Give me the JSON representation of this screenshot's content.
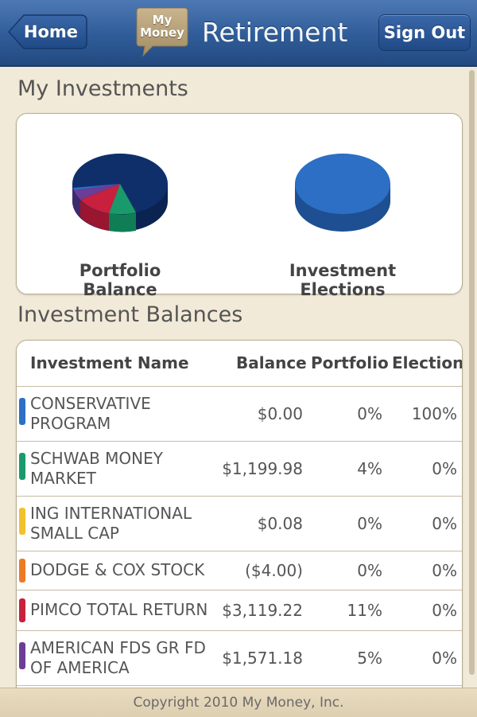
{
  "header": {
    "home_label": "Home",
    "logo_line1": "My",
    "logo_line2": "Money",
    "title": "Retirement",
    "signout_label": "Sign Out"
  },
  "investments": {
    "section_title": "My Investments",
    "charts": [
      {
        "label": "Portfolio Balance"
      },
      {
        "label": "Investment Elections"
      }
    ]
  },
  "balances": {
    "section_title": "Investment Balances",
    "columns": [
      "Investment Name",
      "Balance",
      "Portfolio",
      "Election"
    ],
    "rows": [
      {
        "name_line1": "CONSERVATIVE",
        "name_line2": "PROGRAM",
        "balance": "$0.00",
        "portfolio": "0%",
        "election": "100%",
        "color": "#2c6fc4"
      },
      {
        "name_line1": "SCHWAB MONEY",
        "name_line2": "MARKET",
        "balance": "$1,199.98",
        "portfolio": "4%",
        "election": "0%",
        "color": "#1a9a6a"
      },
      {
        "name_line1": "ING INTERNATIONAL",
        "name_line2": "SMALL CAP",
        "balance": "$0.08",
        "portfolio": "0%",
        "election": "0%",
        "color": "#f2c12e"
      },
      {
        "name_line1": "DODGE & COX STOCK",
        "name_line2": "",
        "balance": "($4.00)",
        "portfolio": "0%",
        "election": "0%",
        "color": "#ee7a25"
      },
      {
        "name_line1": "PIMCO TOTAL RETURN",
        "name_line2": "",
        "balance": "$3,119.22",
        "portfolio": "11%",
        "election": "0%",
        "color": "#c8203d"
      },
      {
        "name_line1": "AMERICAN FDS GR FD",
        "name_line2": "OF AMERICA",
        "balance": "$1,571.18",
        "portfolio": "5%",
        "election": "0%",
        "color": "#6a3d96"
      }
    ]
  },
  "footer": {
    "copyright": "Copyright 2010 My Money, Inc."
  },
  "colors": {
    "navy_slice": "#0f2f6b",
    "header_blue": "#2f5c98"
  }
}
